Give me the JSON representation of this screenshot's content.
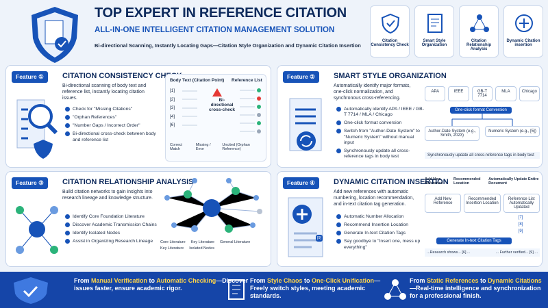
{
  "header": {
    "title": "TOP EXPERT IN REFERENCE CITATION",
    "subtitle": "ALL-IN-ONE INTELLIGENT CITATION MANAGEMENT SOLUTION",
    "tagline": "Bi-directional Scanning, Instantly Locating Gaps—Citation Style Organization and Dynamic Citation Insertion",
    "cards": [
      "Citation Consistency Check",
      "Smart Style Organization",
      "Citation Relationship Analysis",
      "Dynamic Citation insertion"
    ]
  },
  "features": [
    {
      "badge": "Feature ①",
      "title": "CITATION CONSISTENCY CHECK",
      "description": "Bi-directional scanning of body text and reference list, instantly locating citation issues.",
      "bullets": [
        "Check for \"Missing Citations\"",
        "\"Orphan References\"",
        "\"Number Gaps / Incorrect Order\"",
        "Bi-directional cross-check between body and reference list"
      ],
      "diagram": {
        "body_header": "Body Text (Citation Point)",
        "ref_header": "Reference List",
        "body_items": [
          "[1]",
          "[2]",
          "[3]",
          "[4]",
          "[6]"
        ],
        "center": "Bi-directional cross-check",
        "legend": [
          "Correct Match",
          "Missing / Error",
          "Uncited (Orphan Reference)"
        ]
      }
    },
    {
      "badge": "Feature ②",
      "title": "SMART STYLE ORGANIZATION",
      "description": "Automatically identify major formats, one-click normalization, and synchronous cross-referencing.",
      "bullets": [
        "Automatically identify APA / IEEE / GB-T 7714 / MLA / Chicago",
        "One-click format conversion",
        "Switch from \"Author-Date System\" to \"Numeric System\" without manual input",
        "Synchronously update all cross-reference tags in body test"
      ],
      "diagram": {
        "styles": [
          "APA",
          "IEEE",
          "GB-T 7714",
          "MLA",
          "Chicago"
        ],
        "convert": "One-click format Conversion",
        "author_date": "Author-Date System (e.g., Smith, 2023)",
        "numeric": "Numeric System (e.g., [5])",
        "note": "Synchronously update all cross-reference tags in body test"
      }
    },
    {
      "badge": "Feature ③",
      "title": "CITATION RELATIONSHIP ANALYSIS",
      "description": "Build citation networks to gain insights into research lineage and knowledge structure.",
      "bullets": [
        "Identify Core Foundation Literature",
        "Discover Academic Transmission Chains",
        "Identify Isolated Nodes",
        "Assist in Organizing Research Lineage"
      ],
      "diagram": {
        "legend": [
          "Core Literature",
          "Key Literature",
          "General Literature",
          "Key Literature",
          "Isolated Nodes"
        ]
      }
    },
    {
      "badge": "Feature ④",
      "title": "DYNAMIC CITATION INSERTION",
      "description": "Add new references with automatic numbering, location recommendation, and in-text citation tag generation.",
      "bullets": [
        "Automatic Number Allocation",
        "Recommend Insertion Location",
        "Generate In-text Citation Tags",
        "Say goodbye to \"Insert one, mess up everything\""
      ],
      "diagram": {
        "tag": "[9]",
        "steps": [
          "Add New Reference",
          "Recommended Location",
          "Automatically Update Entire Document"
        ],
        "boxes": [
          "Add New Reference",
          "Recommended Insertion Location",
          "Reference List Automatically Updated"
        ],
        "list": [
          "[7]",
          "[8]",
          "[9]"
        ],
        "button": "Generate In-text Citation Tags",
        "snippets": [
          "...Research shows... [6] ...",
          "... Further verified... [9] ..."
        ]
      }
    }
  ],
  "footer": [
    {
      "segments": [
        "From ",
        "Manual Verification",
        " to ",
        "Automatic Checking",
        "—Discover issues faster, ensure academic rigor."
      ]
    },
    {
      "segments": [
        "From ",
        "Style Chaos",
        " to ",
        "One-Click Unification",
        "—Freely switch styles, meeting academic standards."
      ]
    },
    {
      "segments": [
        "From ",
        "Static References",
        " to ",
        "Dynamic Citations",
        "—Real-time intelligence and synchronization for a professional finish."
      ]
    }
  ]
}
